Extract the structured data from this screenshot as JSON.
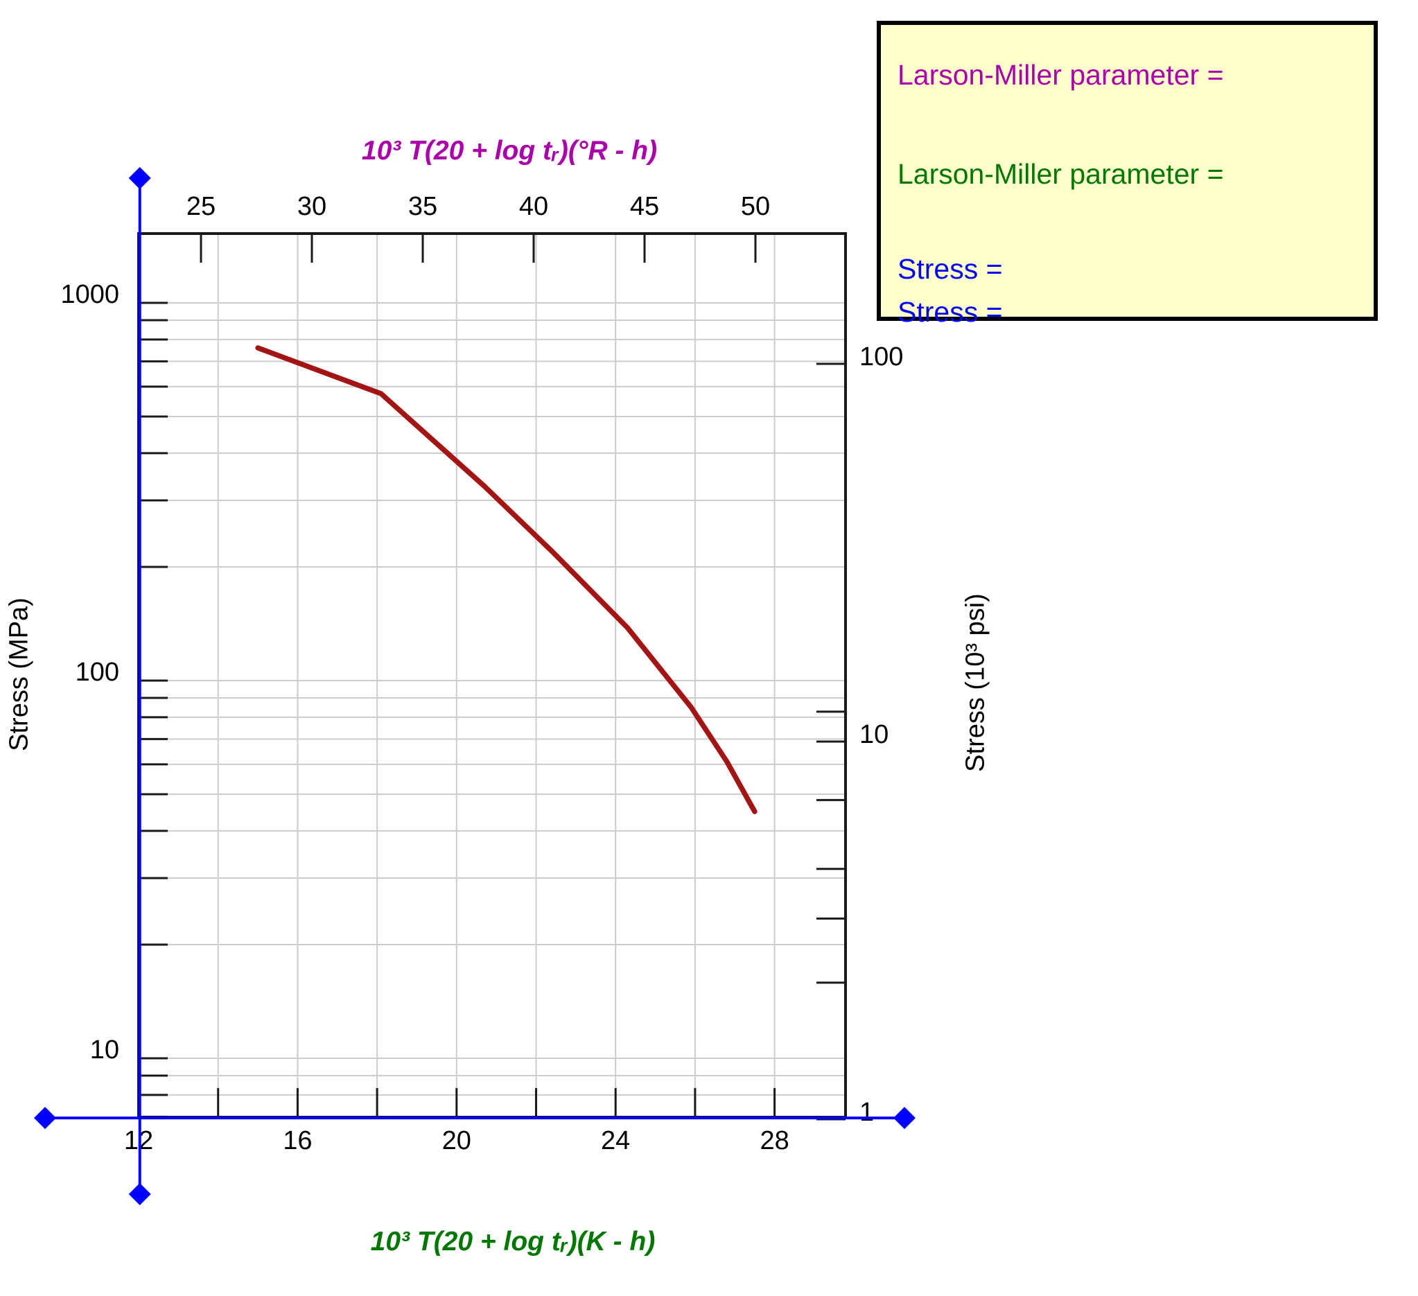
{
  "info_box": {
    "bg": "#ffffcc",
    "lines": [
      {
        "text": "Larson-Miller parameter =",
        "color": "#aa00aa"
      },
      {
        "text": "Larson-Miller parameter =",
        "color": "#007700"
      },
      {
        "text": "Stress =",
        "color": "#0000ff"
      },
      {
        "text": "Stress =",
        "color": "#0000ff"
      }
    ]
  },
  "chart_data": {
    "type": "line",
    "title": "",
    "colors": {
      "grid": "#cccccc",
      "frame": "#1a1a1a",
      "tick": "#1a1a1a",
      "crosshair": "#0000ff"
    },
    "x_bottom": {
      "label": "10³ T(20 + log tᵣ)(K - h)",
      "color": "#007700",
      "range": [
        12,
        29.8
      ],
      "ticks": [
        12,
        14,
        16,
        18,
        20,
        22,
        24,
        26,
        28
      ],
      "tick_labels": [
        12,
        16,
        20,
        24,
        28
      ],
      "grid_values": [
        14,
        16,
        18,
        20,
        22,
        24,
        26,
        28
      ]
    },
    "x_top": {
      "label": "10³ T(20 + log tᵣ)(°R - h)",
      "color": "#aa00aa",
      "ticks": [
        25,
        30,
        35,
        40,
        45,
        50
      ],
      "tick_labels": [
        25,
        30,
        35,
        40,
        45,
        50
      ]
    },
    "y_left": {
      "label": "Stress (MPa)",
      "scale": "log",
      "range": [
        7,
        1525
      ],
      "grid_values": [
        1000,
        900,
        800,
        700,
        600,
        500,
        400,
        300,
        200,
        100,
        90,
        80,
        70,
        60,
        50,
        40,
        30,
        20,
        10,
        9,
        8,
        7
      ],
      "tick_labels": [
        1000,
        100,
        10
      ]
    },
    "y_right": {
      "label": "Stress (10³ psi)",
      "scale": "log",
      "mpa_per_unit": 6.895,
      "ticks": [
        100,
        12,
        10,
        7,
        4.6,
        3.4,
        2.3,
        1
      ],
      "tick_labels": [
        100,
        10,
        1
      ]
    },
    "series": [
      {
        "name": "creep-rupture-curve",
        "color": "#a31515",
        "points_LM_K_vs_MPa": [
          [
            15.0,
            760
          ],
          [
            18.1,
            575
          ],
          [
            20.7,
            327
          ],
          [
            22.4,
            220
          ],
          [
            24.3,
            138
          ],
          [
            25.9,
            85
          ],
          [
            26.8,
            61
          ],
          [
            27.5,
            45
          ]
        ]
      }
    ],
    "crosshair": {
      "color": "#0000ff",
      "vertical": {
        "x_value": 12.03
      },
      "horizontal": {
        "y_value_mpa": 6.95
      }
    },
    "legend_position": "none",
    "grid": true
  }
}
